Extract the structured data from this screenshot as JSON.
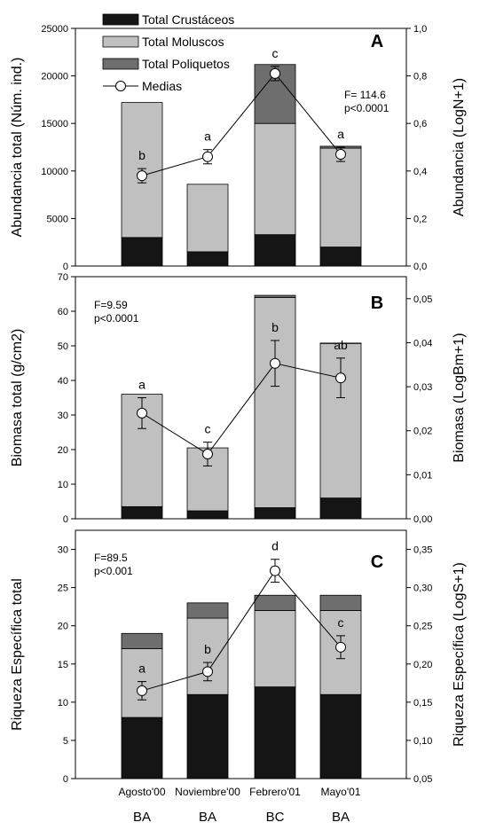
{
  "colors": {
    "crustaceos": "#151515",
    "moluscos": "#c0c0c0",
    "poliquetos": "#6e6e6e",
    "line": "#000000",
    "marker_fill": "#ffffff"
  },
  "legend": {
    "items": [
      {
        "key": "crustaceos",
        "label": "Total Crustáceos"
      },
      {
        "key": "moluscos",
        "label": "Total Moluscos"
      },
      {
        "key": "poliquetos",
        "label": "Total Poliquetos"
      },
      {
        "key": "medias",
        "label": "Medias"
      }
    ]
  },
  "categories": [
    "Agosto'00",
    "Noviembre'00",
    "Febrero'01",
    "Mayo'01"
  ],
  "sites": [
    "BA",
    "BA",
    "BC",
    "BA"
  ],
  "chart_data": [
    {
      "type": "bar",
      "panel": "A",
      "ylabel_left": "Abundancia total (Núm. ind.)",
      "ylabel_right": "Abundancia (LogN+1)",
      "ylim_left": [
        0,
        25000
      ],
      "yticks_left": [
        "0",
        "5000",
        "10000",
        "15000",
        "20000",
        "25000"
      ],
      "ylim_right": [
        0,
        1.0
      ],
      "yticks_right": [
        "0,0",
        "0,2",
        "0,4",
        "0,6",
        "0,8",
        "1,0"
      ],
      "stat_lines": [
        "F= 114.6",
        "p<0.0001"
      ],
      "series": [
        {
          "key": "crustaceos",
          "name": "Total Crustáceos",
          "values": [
            3000,
            1500,
            3300,
            2000
          ]
        },
        {
          "key": "moluscos",
          "name": "Total Moluscos",
          "values": [
            14200,
            7100,
            11700,
            10400
          ]
        },
        {
          "key": "poliquetos",
          "name": "Total Poliquetos",
          "values": [
            0,
            0,
            6200,
            200
          ]
        }
      ],
      "medias": {
        "values": [
          0.38,
          0.46,
          0.81,
          0.47
        ],
        "errors": [
          0.03,
          0.03,
          0.03,
          0.03
        ]
      },
      "letters": [
        "b",
        "a",
        "c",
        "a"
      ]
    },
    {
      "type": "bar",
      "panel": "B",
      "ylabel_left": "Biomasa total (g/cm2)",
      "ylabel_right": "Biomasa (LogBm+1)",
      "ylim_left": [
        0,
        70
      ],
      "yticks_left": [
        "0",
        "10",
        "20",
        "30",
        "40",
        "50",
        "60",
        "70"
      ],
      "ylim_right": [
        0,
        0.055
      ],
      "yticks_right": [
        "0,00",
        "0,01",
        "0,02",
        "0,03",
        "0,04",
        "0,05"
      ],
      "stat_lines": [
        "F=9.59",
        "p<0.0001"
      ],
      "series": [
        {
          "key": "crustaceos",
          "name": "Total Crustáceos",
          "values": [
            3.5,
            2.3,
            3.2,
            6.0
          ]
        },
        {
          "key": "moluscos",
          "name": "Total Moluscos",
          "values": [
            32.5,
            18.2,
            60.8,
            44.7
          ]
        },
        {
          "key": "poliquetos",
          "name": "Total Poliquetos",
          "values": [
            0,
            0,
            0.6,
            0.1
          ]
        }
      ],
      "medias": {
        "values": [
          0.024,
          0.0147,
          0.0353,
          0.032
        ],
        "errors": [
          0.0035,
          0.0027,
          0.0052,
          0.0045
        ]
      },
      "letters": [
        "a",
        "c",
        "b",
        "ab"
      ]
    },
    {
      "type": "bar",
      "panel": "C",
      "ylabel_left": "Riqueza Específica total",
      "ylabel_right": "Riqueza Específica (LogS+1)",
      "ylim_left": [
        0,
        32.5
      ],
      "yticks_left": [
        "0",
        "5",
        "10",
        "15",
        "20",
        "25",
        "30"
      ],
      "ylim_right": [
        0.05,
        0.375
      ],
      "yticks_right": [
        "0,05",
        "0,10",
        "0,15",
        "0,20",
        "0,25",
        "0,30",
        "0,35"
      ],
      "stat_lines": [
        "F=89.5",
        "p<0.001"
      ],
      "series": [
        {
          "key": "crustaceos",
          "name": "Total Crustáceos",
          "values": [
            8,
            11,
            12,
            11
          ]
        },
        {
          "key": "moluscos",
          "name": "Total Moluscos",
          "values": [
            9,
            10,
            10,
            11
          ]
        },
        {
          "key": "poliquetos",
          "name": "Total Poliquetos",
          "values": [
            2,
            2,
            2,
            2
          ]
        }
      ],
      "medias": {
        "values": [
          0.165,
          0.19,
          0.322,
          0.222
        ],
        "errors": [
          0.012,
          0.012,
          0.015,
          0.015
        ]
      },
      "letters": [
        "a",
        "b",
        "d",
        "c"
      ]
    }
  ]
}
